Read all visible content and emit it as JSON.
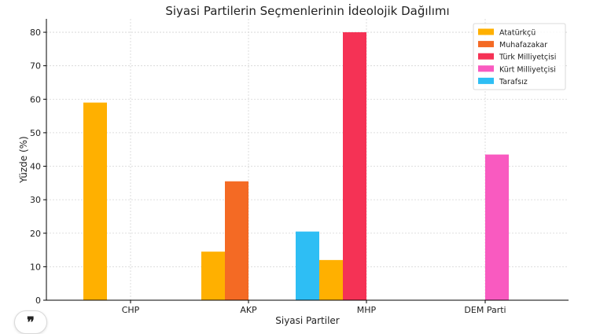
{
  "chart_data": {
    "type": "bar",
    "title": "Siyasi Partilerin Seçmenlerinin İdeolojik Dağılımı",
    "xlabel": "Siyasi Partiler",
    "ylabel": "Yüzde (%)",
    "ylim": [
      0,
      84
    ],
    "yticks": [
      0,
      10,
      20,
      30,
      40,
      50,
      60,
      70,
      80
    ],
    "grid": true,
    "legend_position": "top-right",
    "categories": [
      "CHP",
      "AKP",
      "MHP",
      "DEM Parti"
    ],
    "series": [
      {
        "name": "Atatürkçü",
        "color": "#FFB000",
        "points": [
          {
            "x": "CHP",
            "offset": -2,
            "value": 59
          },
          {
            "x": "AKP",
            "offset": -2,
            "value": 14.5
          },
          {
            "x": "MHP",
            "offset": -2,
            "value": 12
          }
        ]
      },
      {
        "name": "Muhafazakar",
        "color": "#F46A24",
        "points": [
          {
            "x": "AKP",
            "offset": -1,
            "value": 35.5
          }
        ]
      },
      {
        "name": "Türk Milliyetçisi",
        "color": "#F53255",
        "points": [
          {
            "x": "MHP",
            "offset": -1,
            "value": 80
          }
        ]
      },
      {
        "name": "Kürt Milliyetçisi",
        "color": "#F95AC0",
        "points": [
          {
            "x": "DEM Parti",
            "offset": 0,
            "value": 43.5
          }
        ]
      },
      {
        "name": "Tarafsız",
        "color": "#2EBEF4",
        "points": [
          {
            "x": "MHP",
            "offset": -3,
            "value": 20.5
          }
        ]
      }
    ]
  },
  "ui": {
    "quote_icon": "quote-icon",
    "quote_glyph": "❞"
  }
}
